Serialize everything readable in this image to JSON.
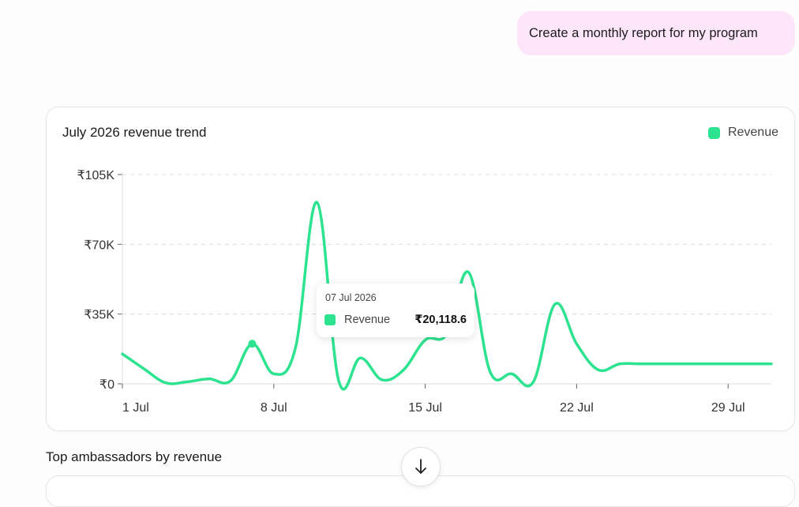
{
  "message": {
    "text": "Create a monthly report for my program"
  },
  "chart_card": {
    "title": "July 2026 revenue trend",
    "legend_label": "Revenue",
    "tooltip": {
      "date": "07 Jul 2026",
      "label": "Revenue",
      "value": "₹20,118.6"
    }
  },
  "section": {
    "title": "Top ambassadors by revenue"
  },
  "colors": {
    "series": "#2de38f",
    "bubble": "#fde5fa",
    "grid": "#dcdcdc"
  },
  "icons": {
    "scroll_down": "arrow-down-icon"
  },
  "chart_data": {
    "type": "line",
    "title": "July 2026 revenue trend",
    "xlabel": "",
    "ylabel": "",
    "ylim": [
      0,
      105000
    ],
    "y_ticks": [
      "₹0",
      "₹35K",
      "₹70K",
      "₹105K"
    ],
    "y_tick_values": [
      0,
      35000,
      70000,
      105000
    ],
    "x_ticks": [
      "1 Jul",
      "8 Jul",
      "15 Jul",
      "22 Jul",
      "29 Jul"
    ],
    "x_tick_days": [
      1,
      8,
      15,
      22,
      29
    ],
    "xlim_days": [
      1,
      31
    ],
    "grid": "horizontal-dashed",
    "legend": "top-right",
    "series": [
      {
        "name": "Revenue",
        "x": [
          1,
          2,
          3,
          4,
          5,
          6,
          7,
          8,
          9,
          10,
          11,
          12,
          13,
          14,
          15,
          16,
          17,
          18,
          19,
          20,
          21,
          22,
          23,
          24,
          25,
          26,
          27,
          28,
          29,
          30,
          31
        ],
        "values": [
          15000,
          7500,
          500,
          1000,
          2500,
          1500,
          20000,
          5000,
          18000,
          91000,
          1500,
          13000,
          2000,
          7000,
          22000,
          25000,
          56000,
          6000,
          5000,
          1000,
          40000,
          20000,
          7000,
          10000,
          10000,
          10000,
          10000,
          10000,
          10000,
          10000,
          10000
        ]
      }
    ],
    "highlight": {
      "day": 7,
      "value": 20118.6
    }
  }
}
